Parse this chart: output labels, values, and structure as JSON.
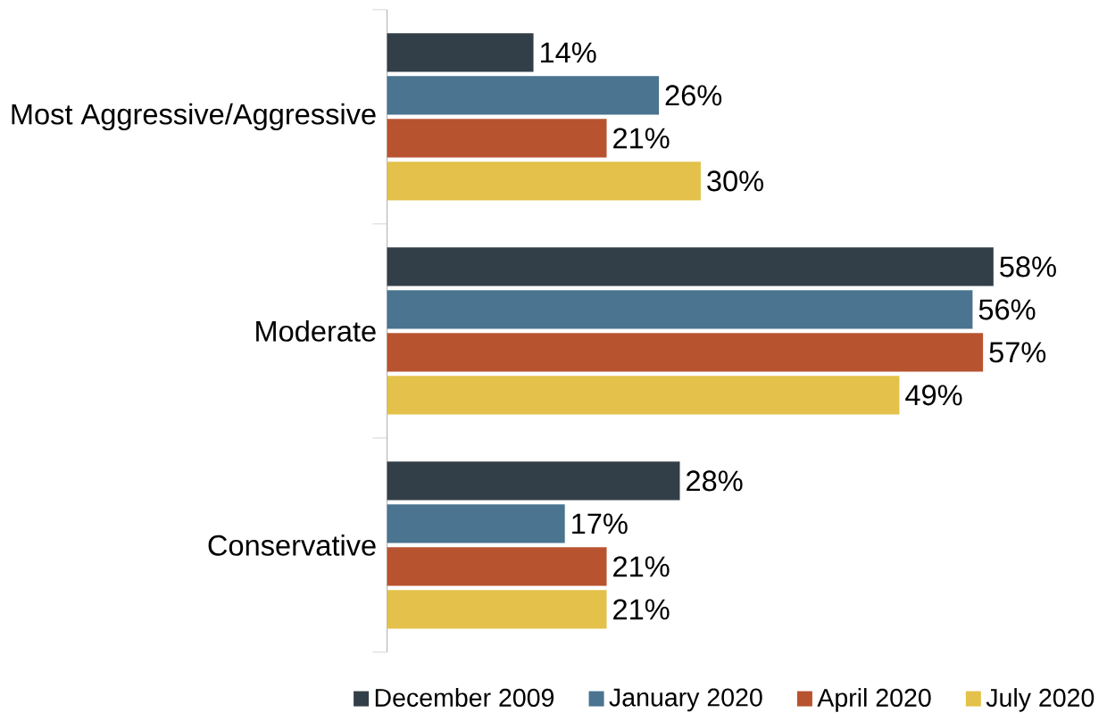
{
  "chart_data": {
    "type": "bar",
    "orientation": "horizontal",
    "categories": [
      "Most Aggressive/Aggressive",
      "Moderate",
      "Conservative"
    ],
    "series": [
      {
        "name": "December 2009",
        "color": "#333f48",
        "values": [
          14,
          58,
          28
        ],
        "value_labels": [
          "14%",
          "58%",
          "28%"
        ]
      },
      {
        "name": "January 2020",
        "color": "#4a7490",
        "values": [
          26,
          56,
          17
        ],
        "value_labels": [
          "26%",
          "56%",
          "17%"
        ]
      },
      {
        "name": "April 2020",
        "color": "#b85330",
        "values": [
          21,
          57,
          21
        ],
        "value_labels": [
          "21%",
          "57%",
          "21%"
        ]
      },
      {
        "name": "July 2020",
        "color": "#e3c14a",
        "values": [
          30,
          49,
          21
        ],
        "value_labels": [
          "30%",
          "49%",
          "21%"
        ]
      }
    ],
    "legend": "bottom"
  }
}
